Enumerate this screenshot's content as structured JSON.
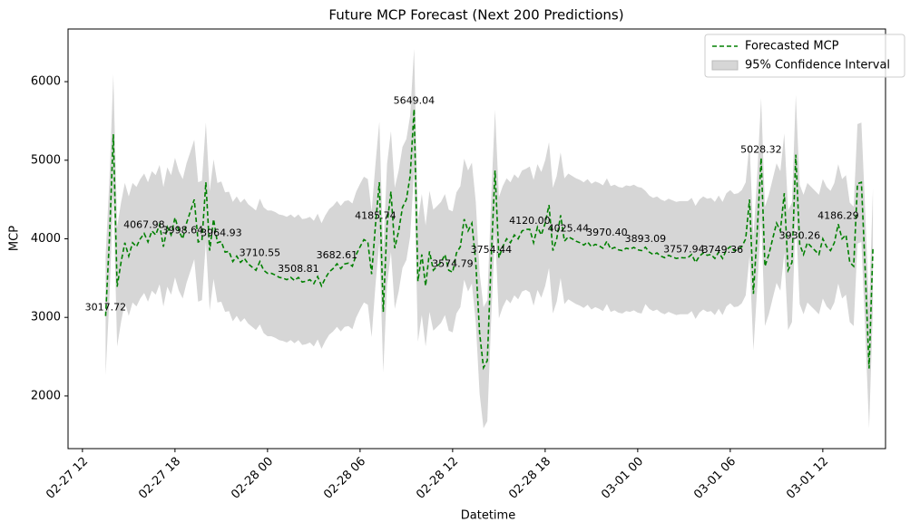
{
  "chart_data": {
    "type": "line",
    "title": "Future MCP Forecast (Next 200 Predictions)",
    "x_label": "Datetime",
    "y_label": "MCP",
    "legend": "upper right",
    "x": [
      "02-27 13:30",
      "02-27 13:45",
      "02-27 14:00",
      "02-27 14:15",
      "02-27 14:30",
      "02-27 14:45",
      "02-27 15:00",
      "02-27 15:15",
      "02-27 15:30",
      "02-27 15:45",
      "02-27 16:00",
      "02-27 16:15",
      "02-27 16:30",
      "02-27 16:45",
      "02-27 17:00",
      "02-27 17:15",
      "02-27 17:30",
      "02-27 17:45",
      "02-27 18:00",
      "02-27 18:15",
      "02-27 18:30",
      "02-27 18:45",
      "02-27 19:00",
      "02-27 19:15",
      "02-27 19:30",
      "02-27 19:45",
      "02-27 20:00",
      "02-27 20:15",
      "02-27 20:30",
      "02-27 20:45",
      "02-27 21:00",
      "02-27 21:15",
      "02-27 21:30",
      "02-27 21:45",
      "02-27 22:00",
      "02-27 22:15",
      "02-27 22:30",
      "02-27 22:45",
      "02-27 23:00",
      "02-27 23:15",
      "02-27 23:30",
      "02-27 23:45",
      "02-28 00:00",
      "02-28 00:15",
      "02-28 00:30",
      "02-28 00:45",
      "02-28 01:00",
      "02-28 01:15",
      "02-28 01:30",
      "02-28 01:45",
      "02-28 02:00",
      "02-28 02:15",
      "02-28 02:30",
      "02-28 02:45",
      "02-28 03:00",
      "02-28 03:15",
      "02-28 03:30",
      "02-28 03:45",
      "02-28 04:00",
      "02-28 04:15",
      "02-28 04:30",
      "02-28 04:45",
      "02-28 05:00",
      "02-28 05:15",
      "02-28 05:30",
      "02-28 05:45",
      "02-28 06:00",
      "02-28 06:15",
      "02-28 06:30",
      "02-28 06:45",
      "02-28 07:00",
      "02-28 07:15",
      "02-28 07:30",
      "02-28 07:45",
      "02-28 08:00",
      "02-28 08:15",
      "02-28 08:30",
      "02-28 08:45",
      "02-28 09:00",
      "02-28 09:15",
      "02-28 09:30",
      "02-28 09:45",
      "02-28 10:00",
      "02-28 10:15",
      "02-28 10:30",
      "02-28 10:45",
      "02-28 11:00",
      "02-28 11:15",
      "02-28 11:30",
      "02-28 11:45",
      "02-28 12:00",
      "02-28 12:15",
      "02-28 12:30",
      "02-28 12:45",
      "02-28 13:00",
      "02-28 13:15",
      "02-28 13:30",
      "02-28 13:45",
      "02-28 14:00",
      "02-28 14:15",
      "02-28 14:30",
      "02-28 14:45",
      "02-28 15:00",
      "02-28 15:15",
      "02-28 15:30",
      "02-28 15:45",
      "02-28 16:00",
      "02-28 16:15",
      "02-28 16:30",
      "02-28 16:45",
      "02-28 17:00",
      "02-28 17:15",
      "02-28 17:30",
      "02-28 17:45",
      "02-28 18:00",
      "02-28 18:15",
      "02-28 18:30",
      "02-28 18:45",
      "02-28 19:00",
      "02-28 19:15",
      "02-28 19:30",
      "02-28 19:45",
      "02-28 20:00",
      "02-28 20:15",
      "02-28 20:30",
      "02-28 20:45",
      "02-28 21:00",
      "02-28 21:15",
      "02-28 21:30",
      "02-28 21:45",
      "02-28 22:00",
      "02-28 22:15",
      "02-28 22:30",
      "02-28 22:45",
      "02-28 23:00",
      "02-28 23:15",
      "02-28 23:30",
      "02-28 23:45",
      "03-01 00:00",
      "03-01 00:15",
      "03-01 00:30",
      "03-01 00:45",
      "03-01 01:00",
      "03-01 01:15",
      "03-01 01:30",
      "03-01 01:45",
      "03-01 02:00",
      "03-01 02:15",
      "03-01 02:30",
      "03-01 02:45",
      "03-01 03:00",
      "03-01 03:15",
      "03-01 03:30",
      "03-01 03:45",
      "03-01 04:00",
      "03-01 04:15",
      "03-01 04:30",
      "03-01 04:45",
      "03-01 05:00",
      "03-01 05:15",
      "03-01 05:30",
      "03-01 05:45",
      "03-01 06:00",
      "03-01 06:15",
      "03-01 06:30",
      "03-01 06:45",
      "03-01 07:00",
      "03-01 07:15",
      "03-01 07:30",
      "03-01 07:45",
      "03-01 08:00",
      "03-01 08:15",
      "03-01 08:30",
      "03-01 08:45",
      "03-01 09:00",
      "03-01 09:15",
      "03-01 09:30",
      "03-01 09:45",
      "03-01 10:00",
      "03-01 10:15",
      "03-01 10:30",
      "03-01 10:45",
      "03-01 11:00",
      "03-01 11:15",
      "03-01 11:30",
      "03-01 11:45",
      "03-01 12:00",
      "03-01 12:15",
      "03-01 12:30",
      "03-01 12:45",
      "03-01 13:00",
      "03-01 13:15",
      "03-01 13:30",
      "03-01 13:45",
      "03-01 14:00",
      "03-01 14:15",
      "03-01 14:30",
      "03-01 14:45",
      "03-01 15:00",
      "03-01 15:15"
    ],
    "series": [
      {
        "name": "Forecasted MCP",
        "color": "#008000",
        "values": [
          3017.72,
          4000,
          5330,
          3390,
          3700,
          3950,
          3780,
          3950,
          3900,
          4000,
          4067.98,
          3960,
          4100,
          4050,
          4180,
          3900,
          4150,
          4050,
          4270,
          4100,
          3998.64,
          4200,
          4350,
          4500,
          3960,
          3980,
          4720,
          3850,
          4250,
          3950,
          3964.93,
          3830,
          3840,
          3710,
          3780,
          3700,
          3750,
          3680,
          3640,
          3600,
          3710.55,
          3600,
          3560,
          3560,
          3540,
          3510,
          3500,
          3480,
          3510,
          3470,
          3508.81,
          3450,
          3460,
          3480,
          3430,
          3520,
          3400,
          3500,
          3580,
          3620,
          3682.61,
          3620,
          3680,
          3690,
          3650,
          3800,
          3900,
          3990,
          3960,
          3550,
          4185.74,
          4720,
          3070,
          4180,
          4600,
          3880,
          4100,
          4400,
          4500,
          4800,
          5649.04,
          3460,
          3800,
          3400,
          3840,
          3600,
          3650,
          3700,
          3800,
          3600,
          3574.79,
          3820,
          3900,
          4250,
          4100,
          4200,
          3700,
          2800,
          2360,
          2450,
          3754.44,
          4870,
          3760,
          3900,
          4000,
          3950,
          4050,
          4000,
          4100,
          4120,
          4120.0,
          3950,
          4150,
          4050,
          4200,
          4430,
          3850,
          4000,
          4300,
          3970,
          4025.44,
          4000,
          3970,
          3950,
          3920,
          3960,
          3900,
          3930,
          3910,
          3880,
          3970.4,
          3870,
          3890,
          3860,
          3850,
          3880,
          3870,
          3890,
          3860,
          3850,
          3893.09,
          3830,
          3800,
          3820,
          3780,
          3760,
          3790,
          3770,
          3750,
          3760,
          3757.94,
          3760,
          3800,
          3700,
          3780,
          3820,
          3790,
          3800,
          3750,
          3830,
          3749.36,
          3860,
          3900,
          3850,
          3860,
          3900,
          4000,
          4500,
          3300,
          4100,
          5028.32,
          3650,
          3800,
          4000,
          4200,
          4100,
          4580,
          3600,
          3700,
          5070,
          3930.26,
          3800,
          3950,
          3900,
          3850,
          3800,
          4000,
          3900,
          3850,
          3950,
          4186.29,
          4000,
          4050,
          3700,
          3650,
          4700,
          4720,
          3600,
          2350,
          3880
        ],
        "value_labels": [
          "3017.72",
          null,
          null,
          null,
          null,
          null,
          null,
          null,
          null,
          null,
          "4067.98",
          null,
          null,
          null,
          null,
          null,
          null,
          null,
          null,
          null,
          "3998.64",
          null,
          null,
          null,
          null,
          null,
          null,
          null,
          null,
          null,
          "3964.93",
          null,
          null,
          null,
          null,
          null,
          null,
          null,
          null,
          null,
          "3710.55",
          null,
          null,
          null,
          null,
          null,
          null,
          null,
          null,
          null,
          "3508.81",
          null,
          null,
          null,
          null,
          null,
          null,
          null,
          null,
          null,
          "3682.61",
          null,
          null,
          null,
          null,
          null,
          null,
          null,
          null,
          null,
          "4185.74",
          null,
          null,
          null,
          null,
          null,
          null,
          null,
          null,
          null,
          "5649.04",
          null,
          null,
          null,
          null,
          null,
          null,
          null,
          null,
          null,
          "3574.79",
          null,
          null,
          null,
          null,
          null,
          null,
          null,
          null,
          null,
          "3754.44",
          null,
          null,
          null,
          null,
          null,
          null,
          null,
          null,
          null,
          "4120.00",
          null,
          null,
          null,
          null,
          null,
          null,
          null,
          null,
          null,
          "4025.44",
          null,
          null,
          null,
          null,
          null,
          null,
          null,
          null,
          null,
          "3970.40",
          null,
          null,
          null,
          null,
          null,
          null,
          null,
          null,
          null,
          "3893.09",
          null,
          null,
          null,
          null,
          null,
          null,
          null,
          null,
          null,
          "3757.94",
          null,
          null,
          null,
          null,
          null,
          null,
          null,
          null,
          null,
          "3749.36",
          null,
          null,
          null,
          null,
          null,
          null,
          null,
          null,
          null,
          "5028.32",
          null,
          null,
          null,
          null,
          null,
          null,
          null,
          null,
          null,
          "3930.26",
          null,
          null,
          null,
          null,
          null,
          null,
          null,
          null,
          null,
          "4186.29",
          null,
          null,
          null,
          null,
          null,
          null,
          null,
          null,
          null
        ]
      }
    ],
    "band": {
      "name": "95% Confidence Interval",
      "color": "#d6d6d6",
      "lower": [
        2260,
        3240,
        4570,
        2630,
        2940,
        3190,
        3020,
        3190,
        3140,
        3240,
        3310,
        3200,
        3340,
        3290,
        3420,
        3140,
        3390,
        3290,
        3510,
        3340,
        3240,
        3440,
        3590,
        3740,
        3200,
        3220,
        3960,
        3090,
        3490,
        3190,
        3200,
        3070,
        3080,
        2950,
        3020,
        2940,
        2990,
        2920,
        2880,
        2840,
        2910,
        2800,
        2760,
        2760,
        2740,
        2710,
        2700,
        2680,
        2710,
        2670,
        2710,
        2650,
        2660,
        2680,
        2630,
        2720,
        2600,
        2700,
        2780,
        2820,
        2880,
        2820,
        2880,
        2890,
        2850,
        3000,
        3100,
        3190,
        3160,
        2750,
        3420,
        3950,
        2300,
        3410,
        3830,
        3110,
        3330,
        3630,
        3730,
        4030,
        4880,
        2690,
        3030,
        2630,
        3070,
        2830,
        2880,
        2930,
        3030,
        2830,
        2810,
        3050,
        3130,
        3480,
        3330,
        3430,
        2930,
        2030,
        1590,
        1680,
        2980,
        4100,
        2990,
        3130,
        3230,
        3180,
        3280,
        3230,
        3330,
        3350,
        3320,
        3150,
        3350,
        3250,
        3400,
        3630,
        3050,
        3200,
        3500,
        3170,
        3230,
        3200,
        3170,
        3150,
        3120,
        3160,
        3100,
        3130,
        3110,
        3080,
        3170,
        3070,
        3090,
        3060,
        3050,
        3080,
        3070,
        3090,
        3060,
        3050,
        3170,
        3110,
        3080,
        3100,
        3060,
        3040,
        3070,
        3050,
        3030,
        3040,
        3040,
        3040,
        3080,
        2980,
        3060,
        3100,
        3070,
        3080,
        3030,
        3110,
        3030,
        3140,
        3180,
        3130,
        3140,
        3180,
        3280,
        3780,
        2580,
        3380,
        4270,
        2890,
        3040,
        3240,
        3440,
        3340,
        3820,
        2840,
        2940,
        4310,
        3170,
        3040,
        3190,
        3140,
        3090,
        3040,
        3240,
        3140,
        3090,
        3190,
        3430,
        3240,
        3290,
        2940,
        2890,
        3940,
        3960,
        2840,
        1590,
        3120
      ],
      "upper": [
        3780,
        4760,
        6090,
        4150,
        4460,
        4710,
        4540,
        4710,
        4660,
        4760,
        4830,
        4720,
        4860,
        4810,
        4940,
        4660,
        4910,
        4810,
        5030,
        4860,
        4760,
        4960,
        5110,
        5260,
        4720,
        4740,
        5480,
        4610,
        5010,
        4710,
        4730,
        4590,
        4600,
        4470,
        4540,
        4460,
        4510,
        4440,
        4400,
        4360,
        4510,
        4400,
        4360,
        4360,
        4340,
        4310,
        4300,
        4280,
        4310,
        4270,
        4310,
        4250,
        4260,
        4280,
        4230,
        4320,
        4200,
        4300,
        4380,
        4420,
        4480,
        4420,
        4480,
        4490,
        4450,
        4600,
        4700,
        4790,
        4760,
        4350,
        4960,
        5490,
        3840,
        4950,
        5370,
        4650,
        4870,
        5170,
        5270,
        5570,
        6420,
        4230,
        4570,
        4170,
        4610,
        4370,
        4420,
        4470,
        4570,
        4370,
        4350,
        4590,
        4670,
        5020,
        4870,
        4970,
        4470,
        3570,
        3130,
        3220,
        4520,
        5640,
        4530,
        4670,
        4770,
        4720,
        4820,
        4770,
        4870,
        4890,
        4920,
        4750,
        4950,
        4850,
        5000,
        5230,
        4650,
        4800,
        5100,
        4770,
        4830,
        4800,
        4770,
        4750,
        4720,
        4760,
        4700,
        4730,
        4710,
        4680,
        4770,
        4670,
        4690,
        4660,
        4650,
        4680,
        4670,
        4690,
        4660,
        4650,
        4610,
        4550,
        4520,
        4540,
        4500,
        4480,
        4510,
        4490,
        4470,
        4480,
        4480,
        4480,
        4520,
        4420,
        4500,
        4540,
        4510,
        4520,
        4470,
        4550,
        4470,
        4580,
        4620,
        4570,
        4580,
        4620,
        4720,
        5220,
        4020,
        4820,
        5790,
        4410,
        4560,
        4760,
        4960,
        4860,
        5340,
        4360,
        4460,
        5830,
        4690,
        4560,
        4710,
        4660,
        4610,
        4560,
        4760,
        4660,
        4610,
        4710,
        4950,
        4760,
        4810,
        4460,
        4410,
        5460,
        5480,
        4360,
        3110,
        4640
      ]
    },
    "xlim": [
      "02-27 11:04",
      "03-01 16:04"
    ],
    "xticks": [
      "02-27 12",
      "02-27 18",
      "02-28 00",
      "02-28 06",
      "02-28 12",
      "02-28 18",
      "03-01 00",
      "03-01 06",
      "03-01 12"
    ],
    "ylim": [
      1330,
      6670
    ],
    "yticks": [
      2000,
      3000,
      4000,
      5000,
      6000
    ],
    "grid": false
  }
}
